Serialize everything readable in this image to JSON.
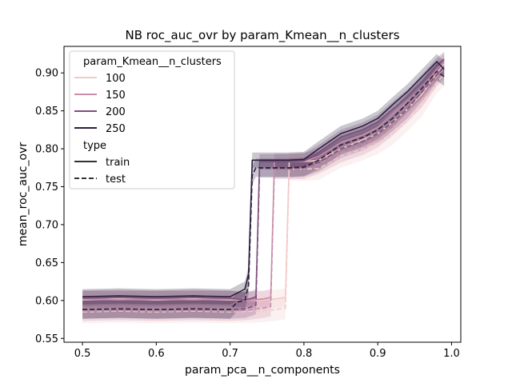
{
  "chart_data": {
    "type": "line",
    "title": "NB roc_auc_ovr by param_Kmean__n_clusters",
    "xlabel": "param_pca__n_components",
    "ylabel": "mean_roc_auc_ovr",
    "xlim": [
      0.475,
      1.0125
    ],
    "ylim": [
      0.545,
      0.935
    ],
    "xticks": [
      0.5,
      0.6,
      0.7,
      0.8,
      0.9,
      1.0
    ],
    "xtick_labels": [
      "0.5",
      "0.6",
      "0.7",
      "0.8",
      "0.9",
      "1.0"
    ],
    "yticks": [
      0.55,
      0.6,
      0.65,
      0.7,
      0.75,
      0.8,
      0.85,
      0.9
    ],
    "ytick_labels": [
      "0.55",
      "0.60",
      "0.65",
      "0.70",
      "0.75",
      "0.80",
      "0.85",
      "0.90"
    ],
    "grid": false,
    "legend": {
      "placement": "top-left",
      "hue_title": "param_Kmean__n_clusters",
      "hue_entries": [
        {
          "label": "100",
          "color": "#f1c9c7"
        },
        {
          "label": "150",
          "color": "#c98ca9"
        },
        {
          "label": "200",
          "color": "#7c4f7f"
        },
        {
          "label": "250",
          "color": "#2d1e3e"
        }
      ],
      "style_title": "type",
      "style_entries": [
        {
          "label": "train",
          "dash": "solid"
        },
        {
          "label": "test",
          "dash": "dashed"
        }
      ]
    },
    "series": [
      {
        "name": "100",
        "type": "train",
        "color": "#f1c9c7",
        "band": 0.012,
        "x": [
          0.5,
          0.55,
          0.6,
          0.65,
          0.7,
          0.74,
          0.76,
          0.775,
          0.78,
          0.8,
          0.82,
          0.85,
          0.88,
          0.9,
          0.92,
          0.94,
          0.96,
          0.98,
          0.99
        ],
        "y": [
          0.601,
          0.602,
          0.601,
          0.602,
          0.601,
          0.6,
          0.602,
          0.604,
          0.783,
          0.783,
          0.785,
          0.8,
          0.812,
          0.82,
          0.835,
          0.852,
          0.872,
          0.9,
          0.912
        ]
      },
      {
        "name": "100",
        "type": "test",
        "color": "#f1c9c7",
        "band": 0.015,
        "x": [
          0.5,
          0.55,
          0.6,
          0.65,
          0.7,
          0.74,
          0.76,
          0.775,
          0.78,
          0.8,
          0.82,
          0.85,
          0.88,
          0.9,
          0.92,
          0.94,
          0.96,
          0.98,
          0.99
        ],
        "y": [
          0.585,
          0.586,
          0.585,
          0.586,
          0.585,
          0.586,
          0.588,
          0.59,
          0.773,
          0.773,
          0.774,
          0.79,
          0.8,
          0.808,
          0.82,
          0.838,
          0.858,
          0.888,
          0.898
        ]
      },
      {
        "name": "150",
        "type": "train",
        "color": "#c98ca9",
        "band": 0.011,
        "x": [
          0.5,
          0.55,
          0.6,
          0.65,
          0.7,
          0.72,
          0.745,
          0.755,
          0.76,
          0.78,
          0.8,
          0.82,
          0.85,
          0.88,
          0.9,
          0.92,
          0.94,
          0.96,
          0.98,
          0.99
        ],
        "y": [
          0.602,
          0.601,
          0.602,
          0.601,
          0.602,
          0.6,
          0.602,
          0.604,
          0.783,
          0.783,
          0.783,
          0.79,
          0.808,
          0.818,
          0.828,
          0.845,
          0.862,
          0.88,
          0.905,
          0.915
        ]
      },
      {
        "name": "150",
        "type": "test",
        "color": "#c98ca9",
        "band": 0.013,
        "x": [
          0.5,
          0.55,
          0.6,
          0.65,
          0.7,
          0.72,
          0.745,
          0.755,
          0.76,
          0.78,
          0.8,
          0.82,
          0.85,
          0.88,
          0.9,
          0.92,
          0.94,
          0.96,
          0.98,
          0.99
        ],
        "y": [
          0.586,
          0.587,
          0.586,
          0.587,
          0.586,
          0.587,
          0.59,
          0.592,
          0.773,
          0.773,
          0.773,
          0.78,
          0.795,
          0.805,
          0.815,
          0.83,
          0.848,
          0.868,
          0.895,
          0.905
        ]
      },
      {
        "name": "200",
        "type": "train",
        "color": "#7c4f7f",
        "band": 0.01,
        "x": [
          0.5,
          0.55,
          0.6,
          0.65,
          0.7,
          0.72,
          0.73,
          0.735,
          0.74,
          0.76,
          0.78,
          0.8,
          0.82,
          0.85,
          0.88,
          0.9,
          0.92,
          0.94,
          0.96,
          0.98,
          0.99
        ],
        "y": [
          0.603,
          0.604,
          0.603,
          0.604,
          0.603,
          0.601,
          0.603,
          0.605,
          0.783,
          0.783,
          0.783,
          0.784,
          0.795,
          0.815,
          0.825,
          0.835,
          0.852,
          0.868,
          0.888,
          0.91,
          0.918
        ]
      },
      {
        "name": "200",
        "type": "test",
        "color": "#7c4f7f",
        "band": 0.012,
        "x": [
          0.5,
          0.55,
          0.6,
          0.65,
          0.7,
          0.72,
          0.73,
          0.735,
          0.74,
          0.76,
          0.78,
          0.8,
          0.82,
          0.85,
          0.88,
          0.9,
          0.92,
          0.94,
          0.96,
          0.98,
          0.99
        ],
        "y": [
          0.588,
          0.589,
          0.588,
          0.589,
          0.588,
          0.589,
          0.592,
          0.594,
          0.774,
          0.774,
          0.774,
          0.775,
          0.782,
          0.8,
          0.81,
          0.82,
          0.835,
          0.852,
          0.875,
          0.898,
          0.908
        ]
      },
      {
        "name": "250",
        "type": "train",
        "color": "#2d1e3e",
        "band": 0.01,
        "x": [
          0.5,
          0.55,
          0.6,
          0.65,
          0.7,
          0.71,
          0.72,
          0.725,
          0.73,
          0.74,
          0.76,
          0.78,
          0.8,
          0.82,
          0.85,
          0.88,
          0.9,
          0.92,
          0.94,
          0.96,
          0.98,
          0.99
        ],
        "y": [
          0.605,
          0.606,
          0.605,
          0.606,
          0.605,
          0.61,
          0.615,
          0.635,
          0.785,
          0.785,
          0.785,
          0.785,
          0.786,
          0.8,
          0.82,
          0.83,
          0.84,
          0.858,
          0.875,
          0.895,
          0.915,
          0.905
        ]
      },
      {
        "name": "250",
        "type": "test",
        "color": "#2d1e3e",
        "band": 0.012,
        "x": [
          0.5,
          0.55,
          0.6,
          0.65,
          0.7,
          0.71,
          0.72,
          0.725,
          0.73,
          0.735,
          0.74,
          0.76,
          0.78,
          0.8,
          0.82,
          0.85,
          0.88,
          0.9,
          0.92,
          0.94,
          0.96,
          0.98,
          0.99
        ],
        "y": [
          0.588,
          0.589,
          0.588,
          0.589,
          0.588,
          0.598,
          0.6,
          0.62,
          0.765,
          0.775,
          0.775,
          0.775,
          0.775,
          0.776,
          0.785,
          0.805,
          0.815,
          0.825,
          0.84,
          0.86,
          0.88,
          0.902,
          0.895
        ]
      }
    ]
  }
}
